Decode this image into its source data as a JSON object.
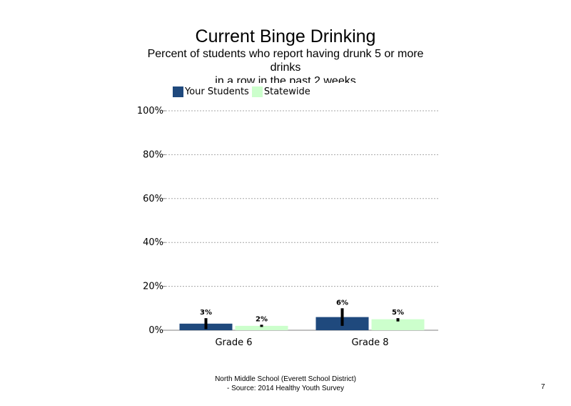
{
  "chart_data": {
    "type": "bar",
    "title": "Current Binge Drinking",
    "subtitle": "Percent of students  who report having drunk 5 or more drinks\nin a row in the past 2 weeks",
    "categories": [
      "Grade 6",
      "Grade 8"
    ],
    "series": [
      {
        "name": "Your Students",
        "color": "#1f497d",
        "values": [
          3,
          6
        ],
        "labels": [
          "3%",
          "6%"
        ],
        "error_low": [
          0.5,
          2
        ],
        "error_high": [
          5.5,
          10
        ]
      },
      {
        "name": "Statewide",
        "color": "#ccffcc",
        "values": [
          2,
          5
        ],
        "labels": [
          "2%",
          "5%"
        ],
        "error_low": [
          1.5,
          4
        ],
        "error_high": [
          2.5,
          5.5
        ]
      }
    ],
    "ylim": [
      0,
      100
    ],
    "yticks": [
      0,
      20,
      40,
      60,
      80,
      100
    ],
    "ytick_labels": [
      "0%",
      "20%",
      "40%",
      "60%",
      "80%",
      "100%"
    ],
    "gridlines": true,
    "legend_position": "top-left"
  },
  "footer": {
    "line1": "North Middle School (Everett School District)",
    "line2": "- Source: 2014 Healthy  Youth Survey"
  },
  "page_number": "7"
}
